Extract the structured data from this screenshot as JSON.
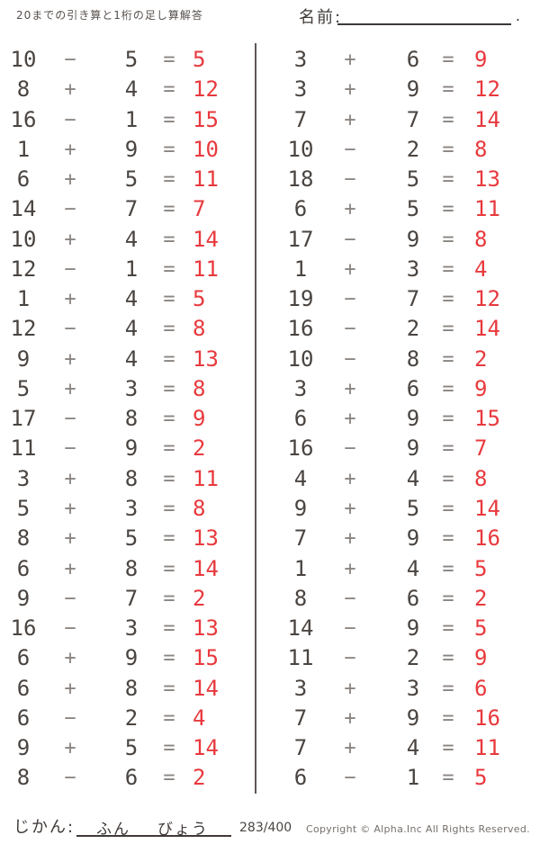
{
  "header": {
    "title": "20までの引き算と1桁の足し算解答",
    "name_label": "名前:",
    "name_suffix": "."
  },
  "symbols": {
    "equals": "=",
    "plus": "+",
    "minus": "−"
  },
  "colors": {
    "problem_text": "#4a4440",
    "operator_text": "#8a8480",
    "answer_text": "#e8393d",
    "divider": "#5f5856",
    "underline": "#3f3a37",
    "background": "#ffffff"
  },
  "problems": {
    "left": [
      {
        "a": "10",
        "op": "−",
        "b": "5",
        "ans": "5"
      },
      {
        "a": "8",
        "op": "+",
        "b": "4",
        "ans": "12"
      },
      {
        "a": "16",
        "op": "−",
        "b": "1",
        "ans": "15"
      },
      {
        "a": "1",
        "op": "+",
        "b": "9",
        "ans": "10"
      },
      {
        "a": "6",
        "op": "+",
        "b": "5",
        "ans": "11"
      },
      {
        "a": "14",
        "op": "−",
        "b": "7",
        "ans": "7"
      },
      {
        "a": "10",
        "op": "+",
        "b": "4",
        "ans": "14"
      },
      {
        "a": "12",
        "op": "−",
        "b": "1",
        "ans": "11"
      },
      {
        "a": "1",
        "op": "+",
        "b": "4",
        "ans": "5"
      },
      {
        "a": "12",
        "op": "−",
        "b": "4",
        "ans": "8"
      },
      {
        "a": "9",
        "op": "+",
        "b": "4",
        "ans": "13"
      },
      {
        "a": "5",
        "op": "+",
        "b": "3",
        "ans": "8"
      },
      {
        "a": "17",
        "op": "−",
        "b": "8",
        "ans": "9"
      },
      {
        "a": "11",
        "op": "−",
        "b": "9",
        "ans": "2"
      },
      {
        "a": "3",
        "op": "+",
        "b": "8",
        "ans": "11"
      },
      {
        "a": "5",
        "op": "+",
        "b": "3",
        "ans": "8"
      },
      {
        "a": "8",
        "op": "+",
        "b": "5",
        "ans": "13"
      },
      {
        "a": "6",
        "op": "+",
        "b": "8",
        "ans": "14"
      },
      {
        "a": "9",
        "op": "−",
        "b": "7",
        "ans": "2"
      },
      {
        "a": "16",
        "op": "−",
        "b": "3",
        "ans": "13"
      },
      {
        "a": "6",
        "op": "+",
        "b": "9",
        "ans": "15"
      },
      {
        "a": "6",
        "op": "+",
        "b": "8",
        "ans": "14"
      },
      {
        "a": "6",
        "op": "−",
        "b": "2",
        "ans": "4"
      },
      {
        "a": "9",
        "op": "+",
        "b": "5",
        "ans": "14"
      },
      {
        "a": "8",
        "op": "−",
        "b": "6",
        "ans": "2"
      }
    ],
    "right": [
      {
        "a": "3",
        "op": "+",
        "b": "6",
        "ans": "9"
      },
      {
        "a": "3",
        "op": "+",
        "b": "9",
        "ans": "12"
      },
      {
        "a": "7",
        "op": "+",
        "b": "7",
        "ans": "14"
      },
      {
        "a": "10",
        "op": "−",
        "b": "2",
        "ans": "8"
      },
      {
        "a": "18",
        "op": "−",
        "b": "5",
        "ans": "13"
      },
      {
        "a": "6",
        "op": "+",
        "b": "5",
        "ans": "11"
      },
      {
        "a": "17",
        "op": "−",
        "b": "9",
        "ans": "8"
      },
      {
        "a": "1",
        "op": "+",
        "b": "3",
        "ans": "4"
      },
      {
        "a": "19",
        "op": "−",
        "b": "7",
        "ans": "12"
      },
      {
        "a": "16",
        "op": "−",
        "b": "2",
        "ans": "14"
      },
      {
        "a": "10",
        "op": "−",
        "b": "8",
        "ans": "2"
      },
      {
        "a": "3",
        "op": "+",
        "b": "6",
        "ans": "9"
      },
      {
        "a": "6",
        "op": "+",
        "b": "9",
        "ans": "15"
      },
      {
        "a": "16",
        "op": "−",
        "b": "9",
        "ans": "7"
      },
      {
        "a": "4",
        "op": "+",
        "b": "4",
        "ans": "8"
      },
      {
        "a": "9",
        "op": "+",
        "b": "5",
        "ans": "14"
      },
      {
        "a": "7",
        "op": "+",
        "b": "9",
        "ans": "16"
      },
      {
        "a": "1",
        "op": "+",
        "b": "4",
        "ans": "5"
      },
      {
        "a": "8",
        "op": "−",
        "b": "6",
        "ans": "2"
      },
      {
        "a": "14",
        "op": "−",
        "b": "9",
        "ans": "5"
      },
      {
        "a": "11",
        "op": "−",
        "b": "2",
        "ans": "9"
      },
      {
        "a": "3",
        "op": "+",
        "b": "3",
        "ans": "6"
      },
      {
        "a": "7",
        "op": "+",
        "b": "9",
        "ans": "16"
      },
      {
        "a": "7",
        "op": "+",
        "b": "4",
        "ans": "11"
      },
      {
        "a": "6",
        "op": "−",
        "b": "1",
        "ans": "5"
      }
    ]
  },
  "footer": {
    "time_label": "じかん:",
    "minutes_label": "ふん",
    "seconds_label": "びょう",
    "page_number": "283/400",
    "copyright": "Copyright ©  Alpha.Inc All Rights Reserved."
  }
}
